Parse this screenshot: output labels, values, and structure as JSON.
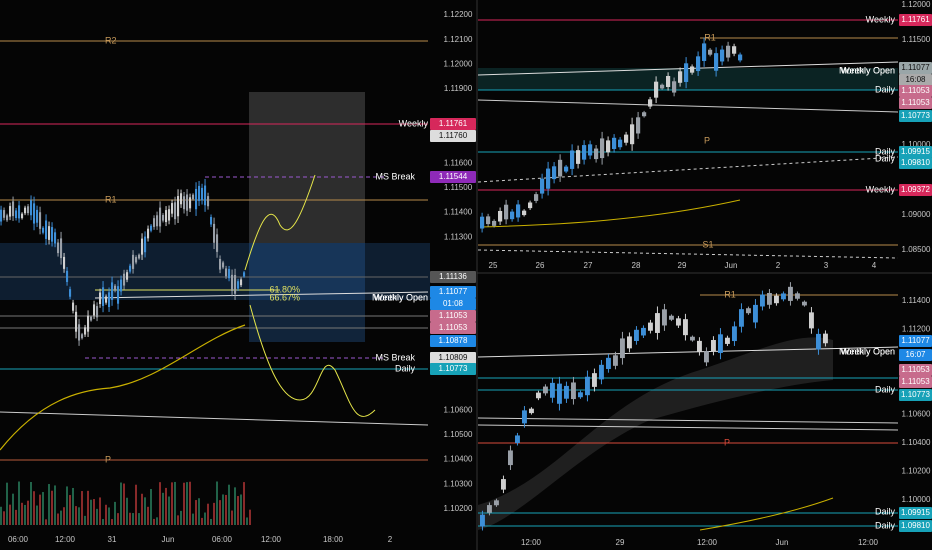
{
  "panels": [
    {
      "axis_ticks": [
        "1.12200",
        "1.12100",
        "1.12000",
        "1.11900",
        "1.11600",
        "1.11500",
        "1.11400",
        "1.11300",
        "1.10600",
        "1.10500",
        "1.10400",
        "1.10300",
        "1.10200"
      ],
      "price_tags": [
        "1.11761",
        "1.11760",
        "1.11544",
        "1.11136",
        "1.11077",
        "01:08",
        "1.11053",
        "1.11053",
        "1.10878",
        "1.10809",
        "1.10773"
      ],
      "levels": [
        "R2",
        "Weekly",
        "R1",
        "MS Break",
        "Monthly Open",
        "Weekly Open",
        "MS Break",
        "Daily",
        "P",
        "61.80%",
        "66.67%"
      ],
      "time_labels": [
        "06:00",
        "12:00",
        "31",
        "Jun",
        "06:00",
        "12:00",
        "18:00",
        "2"
      ]
    },
    {
      "axis_ticks": [
        "1.12000",
        "1.11500",
        "1.10000",
        "1.09000",
        "1.08500"
      ],
      "price_tags": [
        "1.11761",
        "1.11077",
        "16:08",
        "1.11053",
        "1.11053",
        "1.10773",
        "1.09915",
        "1.09810",
        "1.09372"
      ],
      "levels": [
        "Weekly",
        "R1",
        "Monthly Open",
        "Weekly Open",
        "Daily",
        "P",
        "Daily",
        "Daily",
        "Weekly",
        "S1"
      ],
      "time_labels": [
        "25",
        "26",
        "27",
        "28",
        "29",
        "Jun",
        "2",
        "3",
        "4"
      ]
    },
    {
      "axis_ticks": [
        "1.11400",
        "1.11200",
        "1.10600",
        "1.10400",
        "1.10200",
        "1.10000"
      ],
      "price_tags": [
        "1.11077",
        "16:07",
        "1.11053",
        "1.11053",
        "1.10773",
        "1.09915",
        "1.09810"
      ],
      "levels": [
        "R1",
        "Monthly Open",
        "Weekly Open",
        "Daily",
        "P",
        "Daily",
        "Daily"
      ],
      "time_labels": [
        "12:00",
        "29",
        "12:00",
        "Jun",
        "12:00"
      ]
    }
  ]
}
